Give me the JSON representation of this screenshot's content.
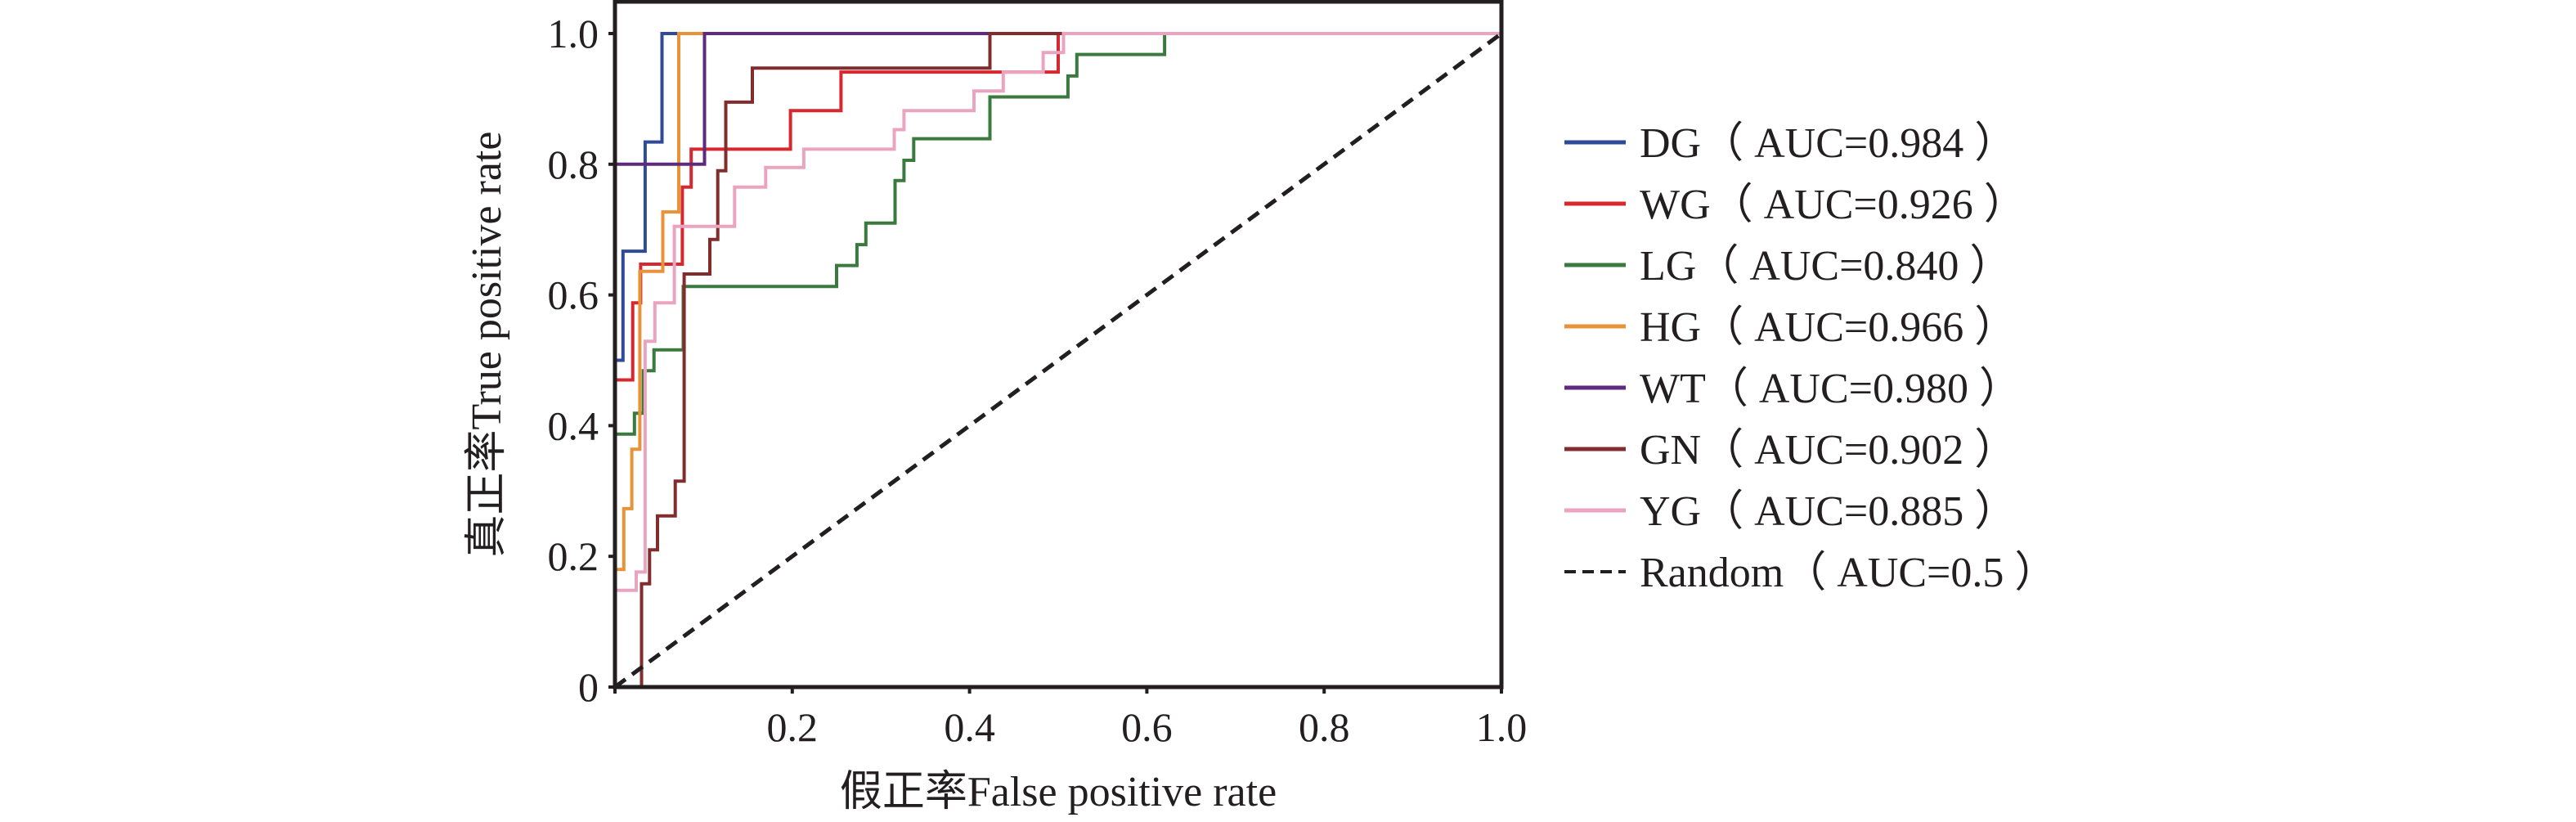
{
  "chart_data": {
    "type": "line",
    "title": "",
    "xlabel": "假正率False positive rate",
    "ylabel": "真正率True positive rate",
    "xlim": [
      0,
      1.0
    ],
    "ylim": [
      0,
      1.0
    ],
    "xticks": [
      0.2,
      0.4,
      0.6,
      0.8,
      1.0
    ],
    "xtick_labels": [
      "0.2",
      "0.4",
      "0.6",
      "0.8",
      "1.0"
    ],
    "yticks": [
      0,
      0.2,
      0.4,
      0.6,
      0.8,
      1.0
    ],
    "ytick_labels": [
      "0",
      "0.2",
      "0.4",
      "0.6",
      "0.8",
      "1.0"
    ],
    "grid": false,
    "legend_position": "right",
    "series": [
      {
        "name": "DG",
        "label": "DG（ AUC=0.984 ）",
        "auc": 0.984,
        "color": "#2f4b97",
        "style": "step",
        "fpr": [
          0,
          0.009,
          0.009,
          0.034,
          0.034,
          0.053,
          0.053,
          1.0
        ],
        "tpr": [
          0.5,
          0.5,
          0.667,
          0.667,
          0.834,
          0.834,
          1.0,
          1.0
        ]
      },
      {
        "name": "WG",
        "label": "WG（ AUC=0.926 ）",
        "auc": 0.926,
        "color": "#d6282e",
        "style": "step",
        "fpr": [
          0,
          0.02,
          0.02,
          0.029,
          0.029,
          0.076,
          0.076,
          0.086,
          0.086,
          0.198,
          0.198,
          0.255,
          0.255,
          0.5,
          0.5,
          1.0
        ],
        "tpr": [
          0.47,
          0.47,
          0.588,
          0.588,
          0.647,
          0.647,
          0.765,
          0.765,
          0.823,
          0.823,
          0.882,
          0.882,
          0.941,
          0.941,
          1.0,
          1.0
        ]
      },
      {
        "name": "LG",
        "label": "LG（ AUC=0.840 ）",
        "auc": 0.84,
        "color": "#3a7a3e",
        "style": "step",
        "fpr": [
          0,
          0.022,
          0.022,
          0.032,
          0.032,
          0.044,
          0.044,
          0.077,
          0.077,
          0.25,
          0.25,
          0.273,
          0.273,
          0.283,
          0.283,
          0.316,
          0.316,
          0.326,
          0.326,
          0.337,
          0.337,
          0.423,
          0.423,
          0.511,
          0.511,
          0.521,
          0.521,
          0.62,
          0.62,
          1.0
        ],
        "tpr": [
          0.387,
          0.387,
          0.419,
          0.419,
          0.484,
          0.484,
          0.516,
          0.516,
          0.613,
          0.613,
          0.645,
          0.645,
          0.677,
          0.677,
          0.71,
          0.71,
          0.775,
          0.775,
          0.806,
          0.806,
          0.839,
          0.839,
          0.903,
          0.903,
          0.935,
          0.935,
          0.968,
          0.968,
          1.0,
          1.0
        ]
      },
      {
        "name": "HG",
        "label": "HG（ AUC=0.966 ）",
        "auc": 0.966,
        "color": "#e8923a",
        "style": "step",
        "fpr": [
          0,
          0.01,
          0.01,
          0.019,
          0.019,
          0.028,
          0.028,
          0.054,
          0.054,
          0.072,
          0.072,
          1.0
        ],
        "tpr": [
          0.18,
          0.18,
          0.273,
          0.273,
          0.364,
          0.364,
          0.636,
          0.636,
          0.727,
          0.727,
          1.0,
          1.0
        ]
      },
      {
        "name": "WT",
        "label": "WT（ AUC=0.980 ）",
        "auc": 0.98,
        "color": "#5e2a7e",
        "style": "step",
        "fpr": [
          0,
          0.101,
          0.101,
          1.0
        ],
        "tpr": [
          0.8,
          0.8,
          1.0,
          1.0
        ]
      },
      {
        "name": "GN",
        "label": "GN（ AUC=0.902 ）",
        "auc": 0.902,
        "color": "#832c2e",
        "style": "step",
        "fpr": [
          0.03,
          0.03,
          0.039,
          0.039,
          0.048,
          0.048,
          0.068,
          0.068,
          0.078,
          0.078,
          0.107,
          0.107,
          0.116,
          0.116,
          0.125,
          0.125,
          0.155,
          0.155,
          0.423,
          0.423,
          1.0
        ],
        "tpr": [
          0,
          0.158,
          0.158,
          0.21,
          0.21,
          0.262,
          0.262,
          0.315,
          0.315,
          0.632,
          0.632,
          0.685,
          0.685,
          0.79,
          0.79,
          0.895,
          0.895,
          0.947,
          0.947,
          1.0,
          1.0
        ]
      },
      {
        "name": "YG",
        "label": "YG（ AUC=0.885 ）",
        "auc": 0.885,
        "color": "#eba4bf",
        "style": "step",
        "fpr": [
          0,
          0.024,
          0.024,
          0.034,
          0.034,
          0.045,
          0.045,
          0.067,
          0.067,
          0.135,
          0.135,
          0.17,
          0.17,
          0.213,
          0.213,
          0.315,
          0.315,
          0.326,
          0.326,
          0.405,
          0.405,
          0.438,
          0.438,
          0.483,
          0.483,
          0.506,
          0.506,
          1.0
        ],
        "tpr": [
          0.148,
          0.148,
          0.176,
          0.176,
          0.529,
          0.529,
          0.588,
          0.588,
          0.705,
          0.705,
          0.765,
          0.765,
          0.795,
          0.795,
          0.823,
          0.823,
          0.853,
          0.853,
          0.882,
          0.882,
          0.912,
          0.912,
          0.941,
          0.941,
          0.971,
          0.971,
          1.0,
          1.0
        ]
      },
      {
        "name": "Random",
        "label": "Random（ AUC=0.5 ）",
        "auc": 0.5,
        "color": "#231f20",
        "style": "dashed",
        "fpr": [
          0,
          1.0
        ],
        "tpr": [
          0,
          1.0
        ]
      }
    ]
  }
}
